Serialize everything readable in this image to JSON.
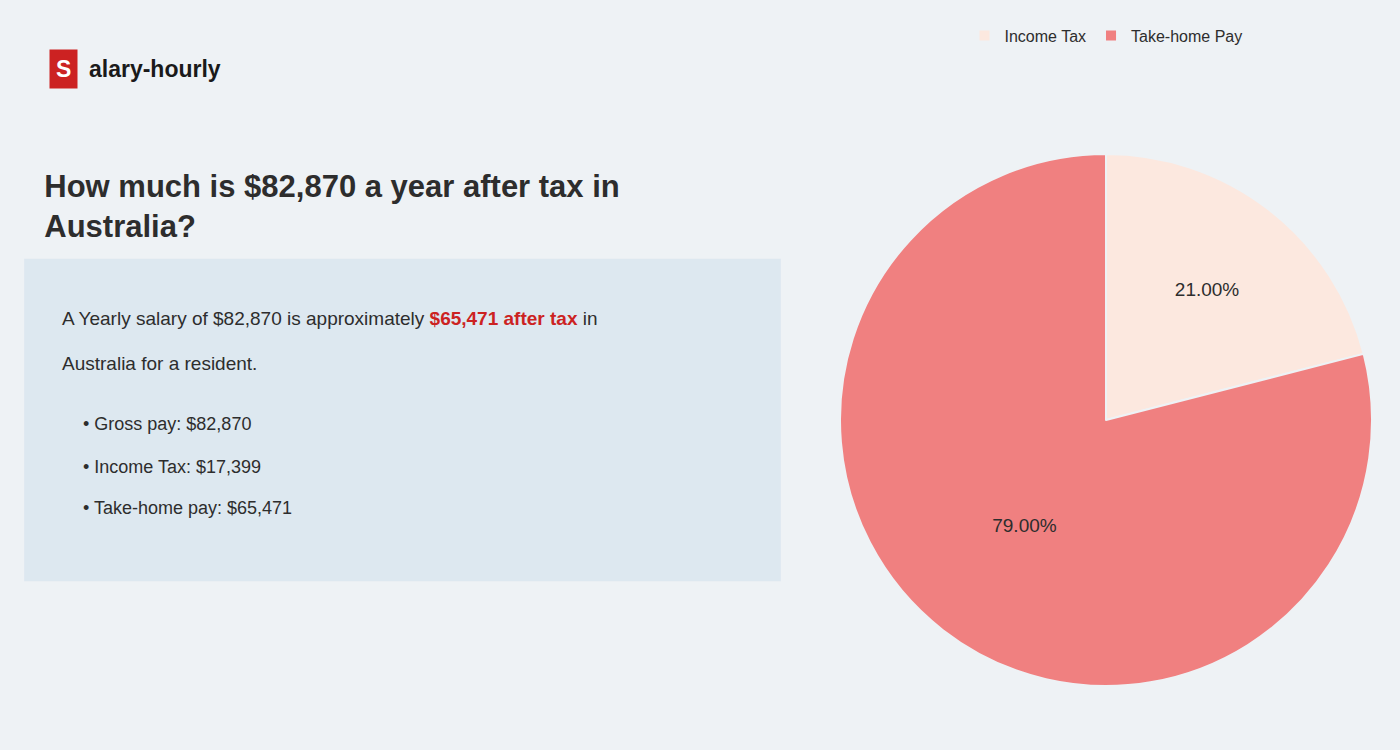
{
  "chart_data": {
    "type": "pie",
    "title": "How much is $82,870 a year after tax in Australia?",
    "categories": [
      "Income Tax",
      "Take-home Pay"
    ],
    "values": [
      21.0,
      79.0
    ],
    "value_labels": [
      "21.00%",
      "79.00%"
    ],
    "colors": [
      "#fce8df",
      "#f08080"
    ],
    "data_labels": true,
    "legend": "top",
    "annotations": [
      "S",
      "alary-hourly",
      "A Yearly salary of $82,870 is approximately ",
      "$65,471 after tax",
      " in",
      "Australia for a resident.",
      "• Gross pay: $82,870",
      "• Income Tax: $17,399",
      "• Take-home pay: $65,471"
    ]
  }
}
